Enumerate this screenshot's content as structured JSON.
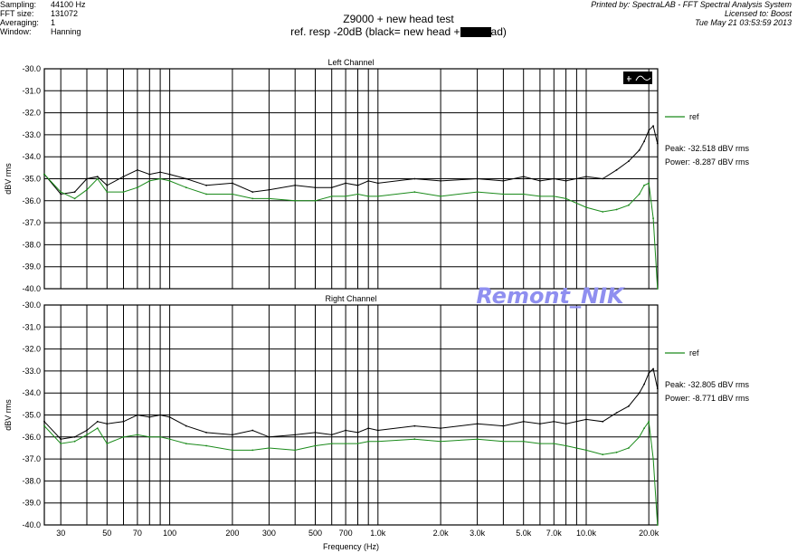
{
  "meta_left": [
    {
      "key": "Sampling:",
      "value": "44100 Hz"
    },
    {
      "key": "FFT size:",
      "value": "131072"
    },
    {
      "key": "Averaging:",
      "value": "1"
    },
    {
      "key": "Window:",
      "value": "Hanning"
    }
  ],
  "meta_right": [
    "Printed by: SpectraLAB - FFT Spectral Analysis System",
    "Licensed to: Boost",
    "Tue May 21 03:53:59 2013"
  ],
  "title": "Z9000 + new head test",
  "subtitle_pre": "ref. resp -20dB (black= new head +",
  "subtitle_post": "ad)",
  "watermark": "Remont_NIK",
  "colors": {
    "black_series": "#000000",
    "ref_series": "#1a8a1a",
    "grid": "#000000",
    "watermark": "#8f8ff0"
  },
  "chart_data": [
    {
      "type": "line",
      "title": "Left Channel",
      "xlabel": "Frequency (Hz)",
      "ylabel": "dBV rms",
      "x_scale": "log",
      "xlim": [
        25,
        22050
      ],
      "ylim": [
        -40.0,
        -30.0
      ],
      "yticks": [
        "-30.0",
        "-31.0",
        "-32.0",
        "-33.0",
        "-34.0",
        "-35.0",
        "-36.0",
        "-37.0",
        "-38.0",
        "-39.0",
        "-40.0"
      ],
      "legend": "ref",
      "peak_label": "Peak: -32.518 dBV rms",
      "power_label": "Power: -8.287 dBV rms",
      "series": [
        {
          "name": "",
          "color": "black",
          "x": [
            25,
            30,
            35,
            40,
            45,
            50,
            60,
            70,
            80,
            90,
            100,
            120,
            150,
            200,
            250,
            300,
            400,
            500,
            600,
            700,
            800,
            900,
            1000,
            1500,
            2000,
            3000,
            4000,
            5000,
            6000,
            7000,
            8000,
            10000,
            12000,
            14000,
            16000,
            18000,
            19000,
            20000,
            21000,
            22000
          ],
          "y": [
            -34.8,
            -35.7,
            -35.6,
            -35.0,
            -34.9,
            -35.3,
            -34.9,
            -34.6,
            -34.8,
            -34.7,
            -34.8,
            -35.0,
            -35.3,
            -35.2,
            -35.6,
            -35.5,
            -35.3,
            -35.4,
            -35.4,
            -35.2,
            -35.3,
            -35.1,
            -35.2,
            -35.0,
            -35.1,
            -35.0,
            -35.1,
            -34.9,
            -35.1,
            -35.0,
            -35.1,
            -34.9,
            -35.0,
            -34.6,
            -34.2,
            -33.7,
            -33.3,
            -32.8,
            -32.6,
            -33.4
          ]
        },
        {
          "name": "ref",
          "color": "green",
          "x": [
            25,
            30,
            35,
            40,
            45,
            50,
            60,
            70,
            80,
            90,
            100,
            120,
            150,
            200,
            250,
            300,
            400,
            500,
            600,
            700,
            800,
            900,
            1000,
            1500,
            2000,
            3000,
            4000,
            5000,
            6000,
            7000,
            8000,
            10000,
            12000,
            14000,
            16000,
            18000,
            19000,
            20000,
            21000,
            22000
          ],
          "y": [
            -34.8,
            -35.6,
            -35.9,
            -35.5,
            -35.0,
            -35.6,
            -35.6,
            -35.4,
            -35.1,
            -35.0,
            -35.1,
            -35.4,
            -35.7,
            -35.7,
            -35.9,
            -35.9,
            -36.0,
            -36.0,
            -35.8,
            -35.8,
            -35.7,
            -35.8,
            -35.8,
            -35.6,
            -35.8,
            -35.6,
            -35.7,
            -35.7,
            -35.8,
            -35.8,
            -35.9,
            -36.3,
            -36.5,
            -36.4,
            -36.2,
            -35.7,
            -35.3,
            -35.2,
            -36.8,
            -40.0
          ]
        }
      ]
    },
    {
      "type": "line",
      "title": "Right Channel",
      "xlabel": "Frequency (Hz)",
      "ylabel": "dBV rms",
      "x_scale": "log",
      "xlim": [
        25,
        22050
      ],
      "ylim": [
        -40.0,
        -30.0
      ],
      "yticks": [
        "-30.0",
        "-31.0",
        "-32.0",
        "-33.0",
        "-34.0",
        "-35.0",
        "-36.0",
        "-37.0",
        "-38.0",
        "-39.0",
        "-40.0"
      ],
      "xticks": [
        "30",
        "50",
        "70",
        "100",
        "200",
        "300",
        "500",
        "700",
        "1.0k",
        "2.0k",
        "3.0k",
        "5.0k",
        "7.0k",
        "10.0k",
        "20.0k"
      ],
      "legend": "ref",
      "peak_label": "Peak: -32.805 dBV rms",
      "power_label": "Power: -8.771 dBV rms",
      "series": [
        {
          "name": "",
          "color": "black",
          "x": [
            25,
            30,
            35,
            40,
            45,
            50,
            60,
            70,
            80,
            90,
            100,
            120,
            150,
            200,
            250,
            300,
            400,
            500,
            600,
            700,
            800,
            900,
            1000,
            1500,
            2000,
            3000,
            4000,
            5000,
            6000,
            7000,
            8000,
            10000,
            12000,
            14000,
            16000,
            18000,
            19000,
            20000,
            21000,
            22000
          ],
          "y": [
            -35.3,
            -36.1,
            -36.0,
            -35.7,
            -35.3,
            -35.4,
            -35.3,
            -35.0,
            -35.1,
            -35.0,
            -35.1,
            -35.5,
            -35.8,
            -35.9,
            -35.7,
            -36.0,
            -35.9,
            -35.8,
            -35.9,
            -35.7,
            -35.8,
            -35.6,
            -35.7,
            -35.5,
            -35.6,
            -35.4,
            -35.5,
            -35.3,
            -35.4,
            -35.3,
            -35.4,
            -35.2,
            -35.3,
            -34.9,
            -34.6,
            -34.0,
            -33.6,
            -33.1,
            -32.9,
            -33.8
          ]
        },
        {
          "name": "ref",
          "color": "green",
          "x": [
            25,
            30,
            35,
            40,
            45,
            50,
            60,
            70,
            80,
            90,
            100,
            120,
            150,
            200,
            250,
            300,
            400,
            500,
            600,
            700,
            800,
            900,
            1000,
            1500,
            2000,
            3000,
            4000,
            5000,
            6000,
            7000,
            8000,
            10000,
            12000,
            14000,
            16000,
            18000,
            19000,
            20000,
            21000,
            22000
          ],
          "y": [
            -35.5,
            -36.3,
            -36.2,
            -35.9,
            -35.6,
            -36.3,
            -36.0,
            -35.9,
            -36.0,
            -36.0,
            -36.1,
            -36.3,
            -36.4,
            -36.6,
            -36.6,
            -36.5,
            -36.6,
            -36.4,
            -36.3,
            -36.3,
            -36.3,
            -36.2,
            -36.2,
            -36.1,
            -36.2,
            -36.1,
            -36.2,
            -36.2,
            -36.3,
            -36.3,
            -36.4,
            -36.6,
            -36.8,
            -36.7,
            -36.5,
            -36.0,
            -35.6,
            -35.3,
            -37.0,
            -40.0
          ]
        }
      ]
    }
  ]
}
